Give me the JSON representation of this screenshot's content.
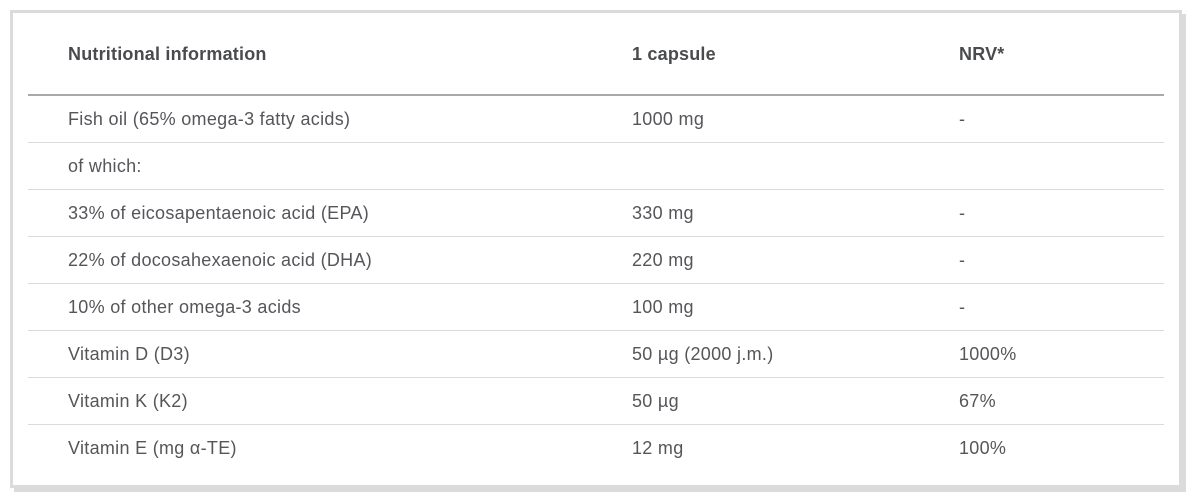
{
  "table": {
    "headers": [
      "Nutritional information",
      "1 capsule",
      "NRV*"
    ],
    "rows": [
      {
        "name": "Fish oil (65% omega-3 fatty acids)",
        "amount": "1000 mg",
        "nrv": "-"
      },
      {
        "name": "of which:",
        "amount": "",
        "nrv": ""
      },
      {
        "name": "33% of eicosapentaenoic acid (EPA)",
        "amount": "330 mg",
        "nrv": "-"
      },
      {
        "name": "22% of docosahexaenoic acid (DHA)",
        "amount": "220 mg",
        "nrv": "-"
      },
      {
        "name": "10% of other omega-3 acids",
        "amount": "100 mg",
        "nrv": "-"
      },
      {
        "name": "Vitamin D (D3)",
        "amount": "50 µg (2000 j.m.)",
        "nrv": "1000%"
      },
      {
        "name": "Vitamin K (K2)",
        "amount": "50 µg",
        "nrv": "67%"
      },
      {
        "name": "Vitamin E (mg α-TE)",
        "amount": "12 mg",
        "nrv": "100%"
      }
    ]
  },
  "style_colors": {
    "card_border": "#dbdbdb",
    "header_text": "#4a4b4e",
    "body_text": "#55565a",
    "header_divider": "#a7a9ac",
    "row_divider": "#dadbdc",
    "background": "#ffffff"
  }
}
